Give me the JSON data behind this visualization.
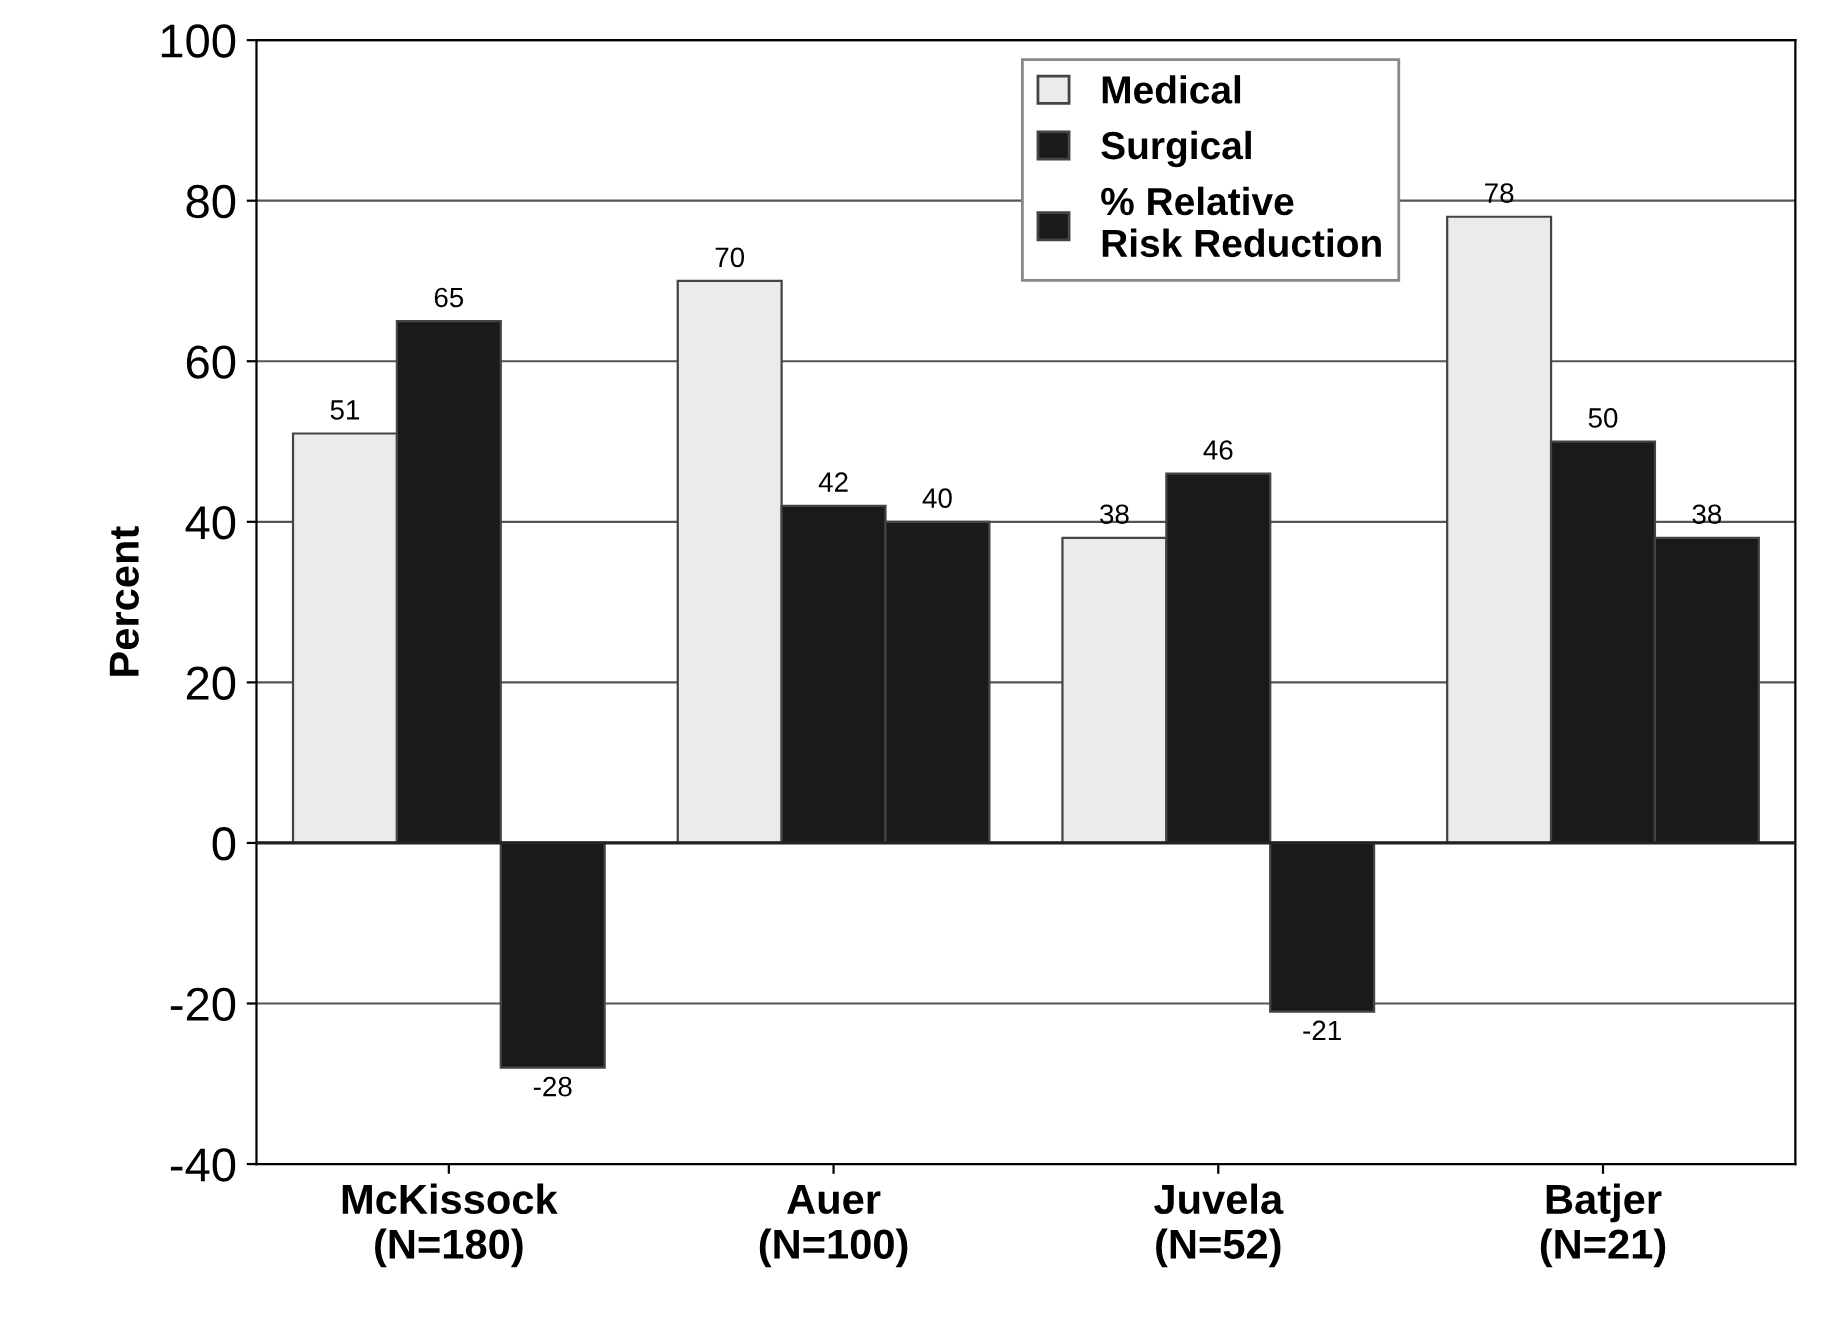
{
  "chart_data": {
    "type": "bar",
    "ylabel": "Percent",
    "categories": [
      "McKissock\n(N=180)",
      "Auer\n(N=100)",
      "Juvela\n(N=52)",
      "Batjer\n(N=21)"
    ],
    "series": [
      {
        "name": "Medical",
        "color": "#ebebeb",
        "values": [
          51,
          70,
          38,
          78
        ]
      },
      {
        "name": "Surgical",
        "color": "#1a1a1a",
        "values": [
          65,
          42,
          46,
          50
        ]
      },
      {
        "name": "% Relative\nRisk Reduction",
        "color": "#1a1a1a",
        "values": [
          -28,
          40,
          -21,
          38
        ]
      }
    ],
    "ylim": [
      -40,
      100
    ],
    "yticks": [
      -40,
      -20,
      0,
      20,
      40,
      60,
      80,
      100
    ],
    "grid": "y",
    "legend": "top",
    "data_labels": true
  }
}
